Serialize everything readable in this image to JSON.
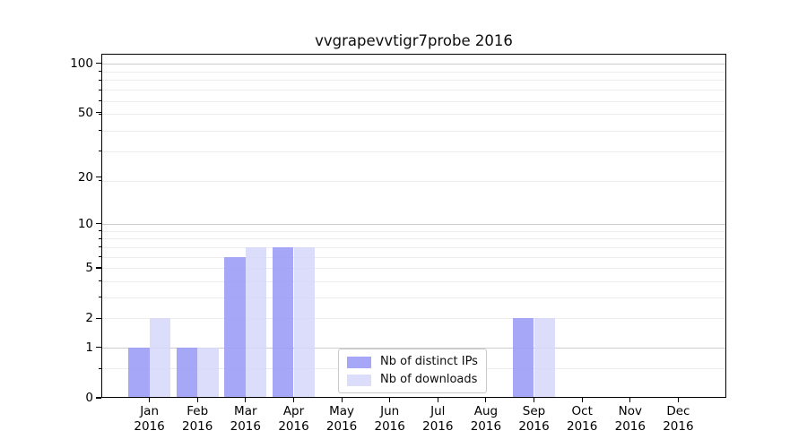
{
  "chart_data": {
    "type": "bar",
    "title": "vvgrapevvtigr7probe 2016",
    "categories": [
      "Jan 2016",
      "Feb 2016",
      "Mar 2016",
      "Apr 2016",
      "May 2016",
      "Jun 2016",
      "Jul 2016",
      "Aug 2016",
      "Sep 2016",
      "Oct 2016",
      "Nov 2016",
      "Dec 2016"
    ],
    "series": [
      {
        "name": "Nb of distinct IPs",
        "color": "#9d9df6",
        "opacity": 0.9,
        "values": [
          1,
          1,
          6,
          7,
          0,
          0,
          0,
          0,
          2,
          0,
          0,
          0
        ]
      },
      {
        "name": "Nb of downloads",
        "color": "#d6d6fa",
        "opacity": 0.85,
        "values": [
          2,
          1,
          7,
          7,
          0,
          0,
          0,
          0,
          2,
          0,
          0,
          0
        ]
      }
    ],
    "xlabel": "",
    "ylabel": "",
    "yscale": "log1p",
    "ylim": [
      0,
      114
    ],
    "yticks": [
      0,
      1,
      2,
      5,
      10,
      20,
      50,
      100
    ],
    "yticks_minor_u": [
      1.5,
      3,
      4,
      5,
      6,
      7,
      8,
      9,
      10,
      20,
      30,
      40,
      50,
      60,
      70,
      80,
      90
    ],
    "grid": {
      "on": true,
      "dark_at": [
        1,
        10,
        100
      ],
      "dark_color": "#cdcdcd",
      "light_color": "#ececec"
    },
    "legend": {
      "position": "lower-center-inside"
    },
    "axis_color": "#000000"
  }
}
